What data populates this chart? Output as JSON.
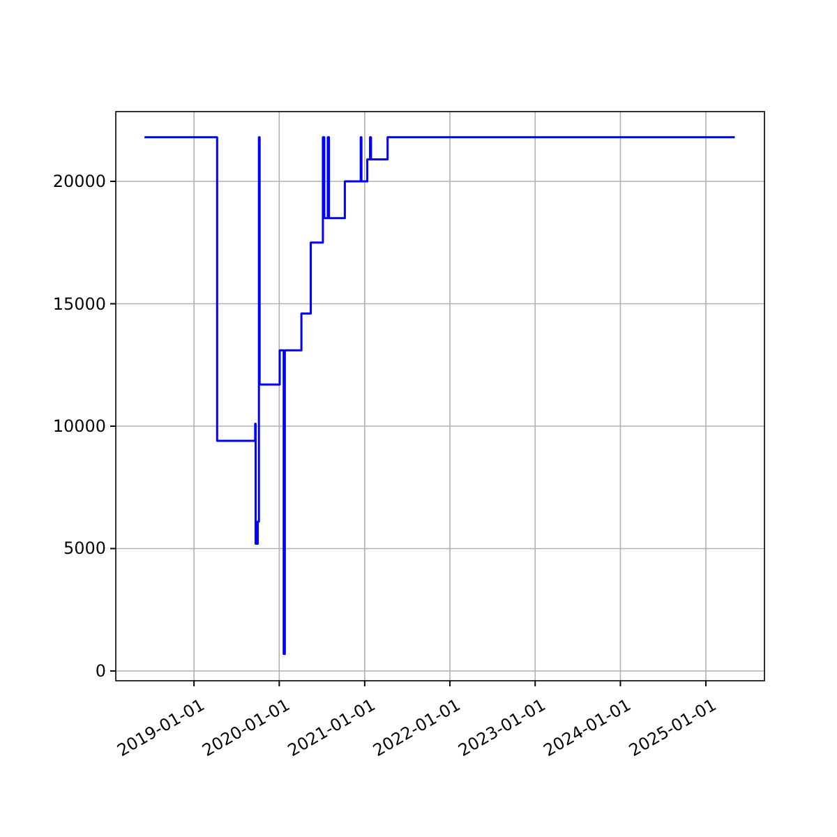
{
  "chart_data": {
    "type": "step",
    "x": [
      "2018-06-03",
      "2019-04-10",
      "2019-09-20",
      "2019-09-22",
      "2019-10-01",
      "2019-10-06",
      "2019-10-09",
      "2020-01-03",
      "2020-01-20",
      "2020-01-25",
      "2020-04-05",
      "2020-05-15",
      "2020-07-06",
      "2020-07-12",
      "2020-07-27",
      "2020-08-01",
      "2020-10-08",
      "2020-12-15",
      "2020-12-18",
      "2021-01-12",
      "2021-01-24",
      "2021-01-28",
      "2021-04-09",
      "2025-05-05"
    ],
    "series": [
      {
        "color": "#0000ff",
        "values": [
          21800,
          9400,
          10100,
          5200,
          6100,
          21800,
          11700,
          13100,
          700,
          13100,
          14600,
          17500,
          21800,
          18500,
          21800,
          18500,
          20000,
          21800,
          20000,
          20900,
          21800,
          20900,
          21800,
          21800
        ]
      }
    ],
    "xlim": [
      "2018-01-31",
      "2025-09-09"
    ],
    "xticks": [
      "2019-01-01",
      "2020-01-01",
      "2021-01-01",
      "2022-01-01",
      "2023-01-01",
      "2024-01-01",
      "2025-01-01"
    ],
    "ylim": [
      -400,
      22850
    ],
    "yticks": [
      0,
      5000,
      10000,
      15000,
      20000
    ],
    "grid": true
  }
}
